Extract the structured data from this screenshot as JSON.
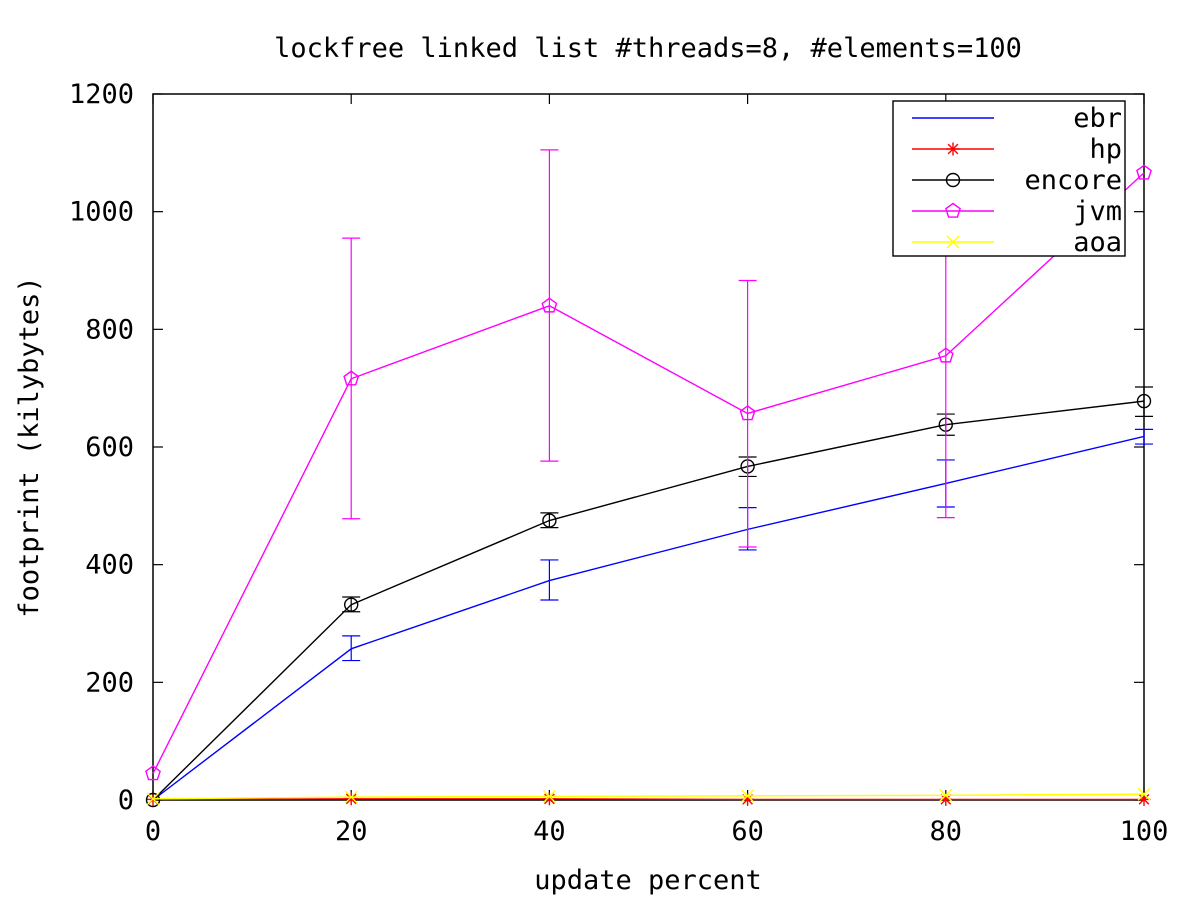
{
  "chart_data": {
    "type": "line",
    "title": "lockfree linked list #threads=8, #elements=100",
    "xlabel": "update percent",
    "ylabel": "footprint (kilybytes)",
    "xlim": [
      0,
      100
    ],
    "ylim": [
      0,
      1200
    ],
    "xticks": [
      0,
      20,
      40,
      60,
      80,
      100
    ],
    "yticks": [
      0,
      200,
      400,
      600,
      800,
      1000,
      1200
    ],
    "grid": false,
    "legend_position": "top-right",
    "x": [
      0,
      20,
      40,
      60,
      80,
      100
    ],
    "series": [
      {
        "name": "ebr",
        "color": "#0000ff",
        "marker": "none",
        "values": [
          0,
          257,
          373,
          460,
          538,
          618
        ],
        "err_low": [
          0,
          237,
          340,
          425,
          498,
          605
        ],
        "err_high": [
          0,
          279,
          408,
          497,
          578,
          630
        ]
      },
      {
        "name": "hp",
        "color": "#ff0000",
        "marker": "star",
        "values": [
          1,
          2,
          2,
          1,
          1,
          1
        ]
      },
      {
        "name": "encore",
        "color": "#000000",
        "marker": "circle",
        "values": [
          0,
          332,
          475,
          567,
          638,
          678
        ],
        "err_low": [
          0,
          320,
          463,
          550,
          620,
          652
        ],
        "err_high": [
          0,
          345,
          488,
          583,
          656,
          702
        ]
      },
      {
        "name": "jvm",
        "color": "#ff00ff",
        "marker": "pentagon",
        "values": [
          45,
          716,
          840,
          657,
          755,
          1066
        ],
        "err_low": [
          45,
          478,
          576,
          430,
          480,
          1066
        ],
        "err_high": [
          45,
          955,
          1105,
          883,
          1028,
          1066
        ]
      },
      {
        "name": "aoa",
        "color": "#ffff00",
        "marker": "x",
        "values": [
          2,
          5,
          6,
          7,
          8,
          10
        ]
      }
    ]
  }
}
